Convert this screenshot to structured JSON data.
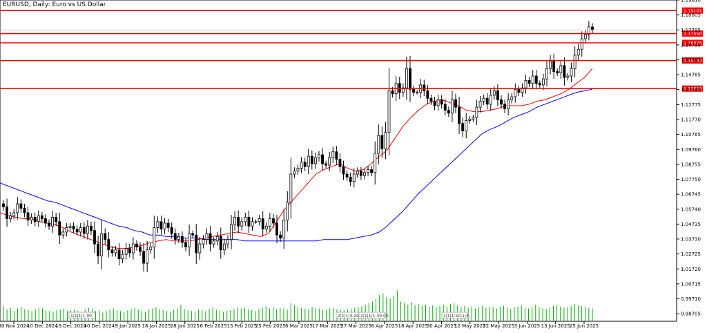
{
  "chart_data": {
    "type": "candlestick",
    "title": "EURUSD, Daily:  Euro vs US Dollar",
    "ylim": [
      0.982,
      1.1981
    ],
    "y_ticks": [
      "1.19810",
      "1.18805",
      "1.17795",
      "1.16790",
      "1.15785",
      "1.14785",
      "1.13785",
      "1.12775",
      "1.11770",
      "1.10765",
      "1.09760",
      "1.08755",
      "1.07750",
      "1.06745",
      "1.05740",
      "1.04735",
      "1.03730",
      "1.02725",
      "1.01720",
      "1.00715",
      "0.99710",
      "0.98705"
    ],
    "x_ticks": [
      "30 Nov 2024",
      "10 Dec 2024",
      "19 Dec 2024",
      "30 Dec 2024",
      "9 Jan 2025",
      "18 Jan 2025",
      "28 Jan 2025",
      "6 Feb 2025",
      "15 Feb 2025",
      "25 Feb 2025",
      "6 Mar 2025",
      "17 Mar 2025",
      "27 Mar 2025",
      "8 Apr 2025",
      "18 Apr 2025",
      "30 Apr 2025",
      "12 May 2025",
      "22 May 2025",
      "3 Jun 2025",
      "13 Jun 2025",
      "25 Jun 2025"
    ],
    "horizontal_levels": [
      {
        "value": 1.19101,
        "label": "1.19101",
        "color": "#ff0000"
      },
      {
        "value": 1.1755,
        "label": "1.17550",
        "color": "#ff0000"
      },
      {
        "value": 1.16926,
        "label": "1.16926",
        "color": "#ff0000"
      },
      {
        "value": 1.1574,
        "label": "1.15740",
        "color": "#ff0000"
      },
      {
        "value": 1.1385,
        "label": "1.13850",
        "color": "#ff0000"
      }
    ],
    "event_labels": [
      "1|1|1|1:00",
      "2|1|1|4:20:00",
      "2|1|1|1:30:00",
      "1|1|1:50:1|4:"
    ],
    "ohlc_close_series": [
      1.059,
      1.051,
      1.053,
      1.055,
      1.061,
      1.058,
      1.055,
      1.05,
      1.052,
      1.049,
      1.053,
      1.051,
      1.048,
      1.046,
      1.052,
      1.049,
      1.04,
      1.042,
      1.045,
      1.046,
      1.044,
      1.042,
      1.045,
      1.041,
      1.046,
      1.043,
      1.034,
      1.026,
      1.041,
      1.037,
      1.03,
      1.028,
      1.03,
      1.024,
      1.027,
      1.031,
      1.028,
      1.034,
      1.032,
      1.029,
      1.021,
      1.03,
      1.032,
      1.045,
      1.049,
      1.044,
      1.048,
      1.045,
      1.041,
      1.037,
      1.039,
      1.035,
      1.032,
      1.041,
      1.04,
      1.028,
      1.034,
      1.037,
      1.041,
      1.034,
      1.036,
      1.039,
      1.03,
      1.034,
      1.037,
      1.047,
      1.052,
      1.046,
      1.049,
      1.052,
      1.046,
      1.049,
      1.049,
      1.051,
      1.044,
      1.046,
      1.051,
      1.048,
      1.04,
      1.038,
      1.05,
      1.062,
      1.081,
      1.083,
      1.085,
      1.089,
      1.086,
      1.093,
      1.088,
      1.092,
      1.094,
      1.088,
      1.087,
      1.092,
      1.096,
      1.091,
      1.086,
      1.081,
      1.079,
      1.076,
      1.081,
      1.083,
      1.08,
      1.082,
      1.084,
      1.082,
      1.095,
      1.107,
      1.098,
      1.109,
      1.137,
      1.135,
      1.142,
      1.136,
      1.139,
      1.152,
      1.138,
      1.136,
      1.136,
      1.141,
      1.137,
      1.132,
      1.13,
      1.127,
      1.131,
      1.128,
      1.124,
      1.122,
      1.131,
      1.126,
      1.115,
      1.11,
      1.117,
      1.118,
      1.119,
      1.126,
      1.13,
      1.132,
      1.128,
      1.134,
      1.137,
      1.131,
      1.128,
      1.125,
      1.131,
      1.133,
      1.138,
      1.136,
      1.139,
      1.144,
      1.142,
      1.147,
      1.142,
      1.141,
      1.145,
      1.152,
      1.157,
      1.15,
      1.149,
      1.154,
      1.146,
      1.147,
      1.152,
      1.161,
      1.165,
      1.172,
      1.175,
      1.18,
      1.178
    ],
    "ma_slow": {
      "color": "#0000ff",
      "values": [
        1.075,
        1.073,
        1.071,
        1.069,
        1.067,
        1.065,
        1.063,
        1.062,
        1.06,
        1.058,
        1.056,
        1.054,
        1.052,
        1.05,
        1.048,
        1.046,
        1.045,
        1.043,
        1.042,
        1.04,
        1.04,
        1.039,
        1.039,
        1.038,
        1.038,
        1.038,
        1.037,
        1.037,
        1.037,
        1.037,
        1.037,
        1.036,
        1.036,
        1.036,
        1.036,
        1.036,
        1.036,
        1.036,
        1.036,
        1.036,
        1.036,
        1.037,
        1.037,
        1.037,
        1.037,
        1.038,
        1.039,
        1.04,
        1.042,
        1.046,
        1.051,
        1.056,
        1.062,
        1.068,
        1.073,
        1.078,
        1.083,
        1.088,
        1.093,
        1.098,
        1.103,
        1.108,
        1.111,
        1.113,
        1.116,
        1.119,
        1.121,
        1.123,
        1.126,
        1.128,
        1.13,
        1.132,
        1.134,
        1.136,
        1.137,
        1.138
      ]
    },
    "ma_fast": {
      "color": "#ff0000",
      "values": [
        1.055,
        1.053,
        1.052,
        1.051,
        1.051,
        1.049,
        1.048,
        1.047,
        1.045,
        1.042,
        1.04,
        1.038,
        1.036,
        1.034,
        1.032,
        1.031,
        1.031,
        1.032,
        1.033,
        1.035,
        1.036,
        1.037,
        1.036,
        1.036,
        1.036,
        1.037,
        1.038,
        1.039,
        1.04,
        1.041,
        1.042,
        1.041,
        1.04,
        1.039,
        1.041,
        1.049,
        1.057,
        1.063,
        1.069,
        1.075,
        1.081,
        1.084,
        1.086,
        1.088,
        1.085,
        1.083,
        1.084,
        1.088,
        1.093,
        1.097,
        1.105,
        1.113,
        1.119,
        1.124,
        1.128,
        1.13,
        1.131,
        1.129,
        1.127,
        1.124,
        1.123,
        1.123,
        1.124,
        1.125,
        1.127,
        1.127,
        1.127,
        1.128,
        1.13,
        1.131,
        1.133,
        1.135,
        1.138,
        1.142,
        1.146,
        1.152
      ]
    },
    "volume_relative": [
      0.45,
      0.35,
      0.4,
      0.3,
      0.38,
      0.42,
      0.36,
      0.33,
      0.3,
      0.35,
      0.4,
      0.38,
      0.32,
      0.3,
      0.28,
      0.33,
      0.35,
      0.38,
      0.3,
      0.32,
      0.36,
      0.3,
      0.28,
      0.35,
      0.4,
      0.38,
      0.3,
      0.32,
      0.25,
      0.3,
      0.35,
      0.38,
      0.33,
      0.3,
      0.28,
      0.32,
      0.36,
      0.4,
      0.34,
      0.3,
      0.28,
      0.35,
      0.38,
      0.42,
      0.36,
      0.33,
      0.3,
      0.28,
      0.34,
      0.38,
      0.5,
      0.36,
      0.32,
      0.3,
      0.28,
      0.35,
      0.33,
      0.3,
      0.36,
      0.4,
      0.34,
      0.32,
      0.28,
      0.3,
      0.33,
      0.36,
      0.42,
      0.38,
      0.4,
      0.35,
      0.33,
      0.3,
      0.36,
      0.4,
      0.45,
      0.38,
      0.42,
      0.36,
      0.4,
      0.38,
      0.35,
      0.55,
      0.48,
      0.42,
      0.4,
      0.38,
      0.36,
      0.42,
      0.4,
      0.38,
      0.35,
      0.33,
      0.38,
      0.4,
      0.36,
      0.34,
      0.32,
      0.35,
      0.38,
      0.4,
      0.42,
      0.45,
      0.5,
      0.55,
      0.6,
      0.7,
      0.8,
      0.85,
      0.75,
      0.7,
      0.78,
      0.95,
      0.6,
      0.55,
      0.5,
      0.58,
      0.48,
      0.52,
      0.46,
      0.5,
      0.44,
      0.48,
      0.42,
      0.46,
      0.5,
      0.44,
      0.52,
      0.55,
      0.48,
      0.42,
      0.46,
      0.4,
      0.44,
      0.38,
      0.42,
      0.46,
      0.4,
      0.44,
      0.42,
      0.38,
      0.44,
      0.46,
      0.4,
      0.36,
      0.42,
      0.44,
      0.48,
      0.4,
      0.38,
      0.44,
      0.5,
      0.42,
      0.38,
      0.36,
      0.4,
      0.46,
      0.48,
      0.44,
      0.4,
      0.42,
      0.46,
      0.52,
      0.48,
      0.46,
      0.44,
      0.4,
      0.38
    ]
  }
}
